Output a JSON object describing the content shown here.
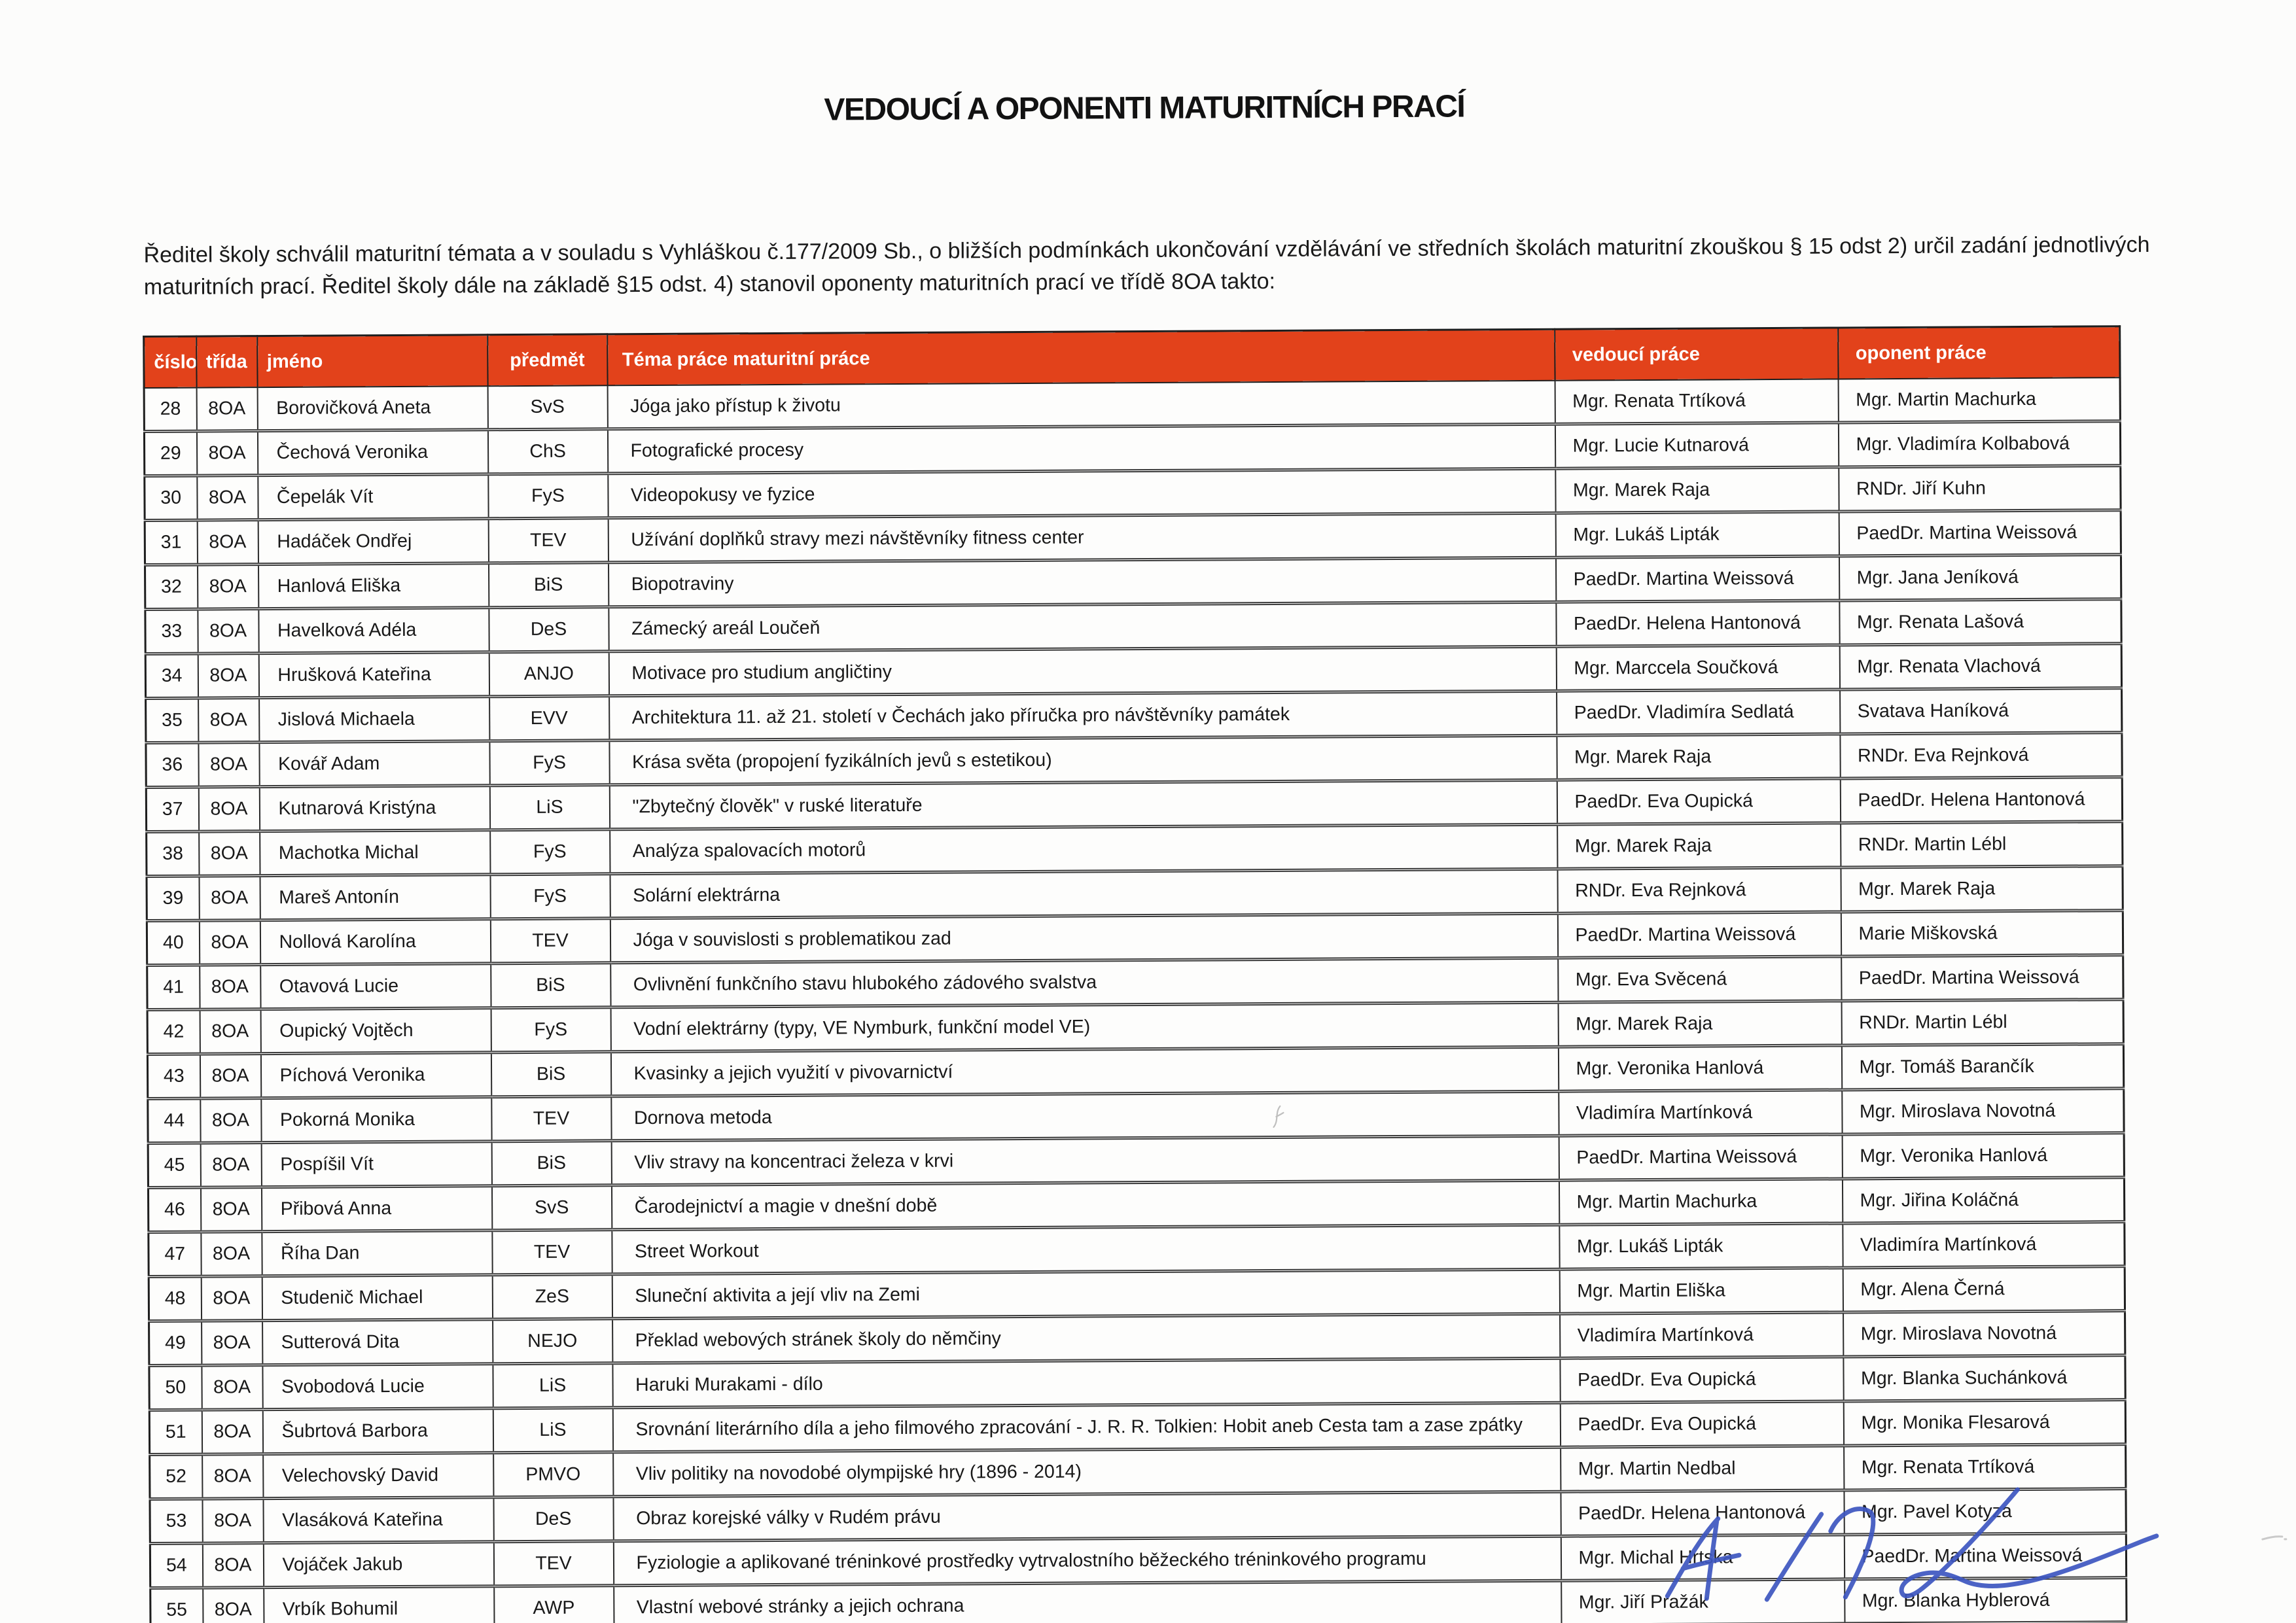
{
  "document": {
    "title": "VEDOUCÍ A OPONENTI MATURITNÍCH PRACÍ",
    "intro": "Ředitel školy schválil maturitní témata a v souladu s Vyhláškou č.177/2009 Sb., o bližších podmínkách ukončování vzdělávání ve středních školách maturitní zkouškou § 15 odst 2) určil zadání jednotlivých maturitních prací. Ředitel školy dále na základě §15 odst. 4) stanovil oponenty maturitních prací ve třídě 8OA takto:"
  },
  "table": {
    "header_bg": "#e2421b",
    "header_text_color": "#ffffff",
    "columns": [
      "číslo",
      "třída",
      "jméno",
      "předmět",
      "Téma práce maturitní práce",
      "vedoucí práce",
      "oponent práce"
    ],
    "column_keys": [
      "cislo",
      "trida",
      "jmeno",
      "predmet",
      "tema",
      "vedouci-prace",
      "oponent-prace"
    ],
    "rows": [
      [
        "28",
        "8OA",
        "Borovičková Aneta",
        "SvS",
        "Jóga jako přístup k životu",
        "Mgr. Renata Trtíková",
        "Mgr. Martin Machurka"
      ],
      [
        "29",
        "8OA",
        "Čechová Veronika",
        "ChS",
        "Fotografické procesy",
        "Mgr. Lucie Kutnarová",
        "Mgr. Vladimíra Kolbabová"
      ],
      [
        "30",
        "8OA",
        "Čepelák Vít",
        "FyS",
        "Videopokusy ve fyzice",
        "Mgr. Marek Raja",
        "RNDr. Jiří Kuhn"
      ],
      [
        "31",
        "8OA",
        "Hadáček Ondřej",
        "TEV",
        "Užívání doplňků stravy mezi návštěvníky fitness center",
        "Mgr. Lukáš Lipták",
        "PaedDr. Martina Weissová"
      ],
      [
        "32",
        "8OA",
        "Hanlová Eliška",
        "BiS",
        "Biopotraviny",
        "PaedDr. Martina Weissová",
        "Mgr. Jana Jeníková"
      ],
      [
        "33",
        "8OA",
        "Havelková Adéla",
        "DeS",
        "Zámecký areál Loučeň",
        "PaedDr. Helena Hantonová",
        "Mgr. Renata Lašová"
      ],
      [
        "34",
        "8OA",
        "Hrušková Kateřina",
        "ANJO",
        "Motivace pro studium angličtiny",
        "Mgr. Marccela Součková",
        "Mgr. Renata Vlachová"
      ],
      [
        "35",
        "8OA",
        "Jislová Michaela",
        "EVV",
        "Architektura 11. až 21. století v Čechách jako příručka pro návštěvníky památek",
        "PaedDr. Vladimíra Sedlatá",
        "Svatava Haníková"
      ],
      [
        "36",
        "8OA",
        "Kovář Adam",
        "FyS",
        "Krása světa (propojení fyzikálních jevů s estetikou)",
        "Mgr. Marek Raja",
        "RNDr. Eva Rejnková"
      ],
      [
        "37",
        "8OA",
        "Kutnarová Kristýna",
        "LiS",
        "\"Zbytečný člověk\" v ruské literatuře",
        "PaedDr. Eva Oupická",
        "PaedDr. Helena Hantonová"
      ],
      [
        "38",
        "8OA",
        "Machotka Michal",
        "FyS",
        "Analýza spalovacích motorů",
        "Mgr. Marek Raja",
        "RNDr. Martin Lébl"
      ],
      [
        "39",
        "8OA",
        "Mareš Antonín",
        "FyS",
        "Solární elektrárna",
        "RNDr. Eva Rejnková",
        "Mgr. Marek Raja"
      ],
      [
        "40",
        "8OA",
        "Nollová Karolína",
        "TEV",
        "Jóga v souvislosti s problematikou zad",
        "PaedDr. Martina Weissová",
        "Marie Miškovská"
      ],
      [
        "41",
        "8OA",
        "Otavová Lucie",
        "BiS",
        "Ovlivnění funkčního stavu hlubokého zádového svalstva",
        "Mgr. Eva Svěcená",
        "PaedDr. Martina Weissová"
      ],
      [
        "42",
        "8OA",
        "Oupický Vojtěch",
        "FyS",
        "Vodní elektrárny (typy, VE Nymburk, funkční model VE)",
        "Mgr. Marek Raja",
        "RNDr. Martin Lébl"
      ],
      [
        "43",
        "8OA",
        "Píchová Veronika",
        "BiS",
        "Kvasinky a jejich využití v pivovarnictví",
        "Mgr. Veronika Hanlová",
        "Mgr. Tomáš Barančík"
      ],
      [
        "44",
        "8OA",
        "Pokorná Monika",
        "TEV",
        "Dornova metoda",
        "Vladimíra Martínková",
        "Mgr. Miroslava Novotná"
      ],
      [
        "45",
        "8OA",
        "Pospíšil Vít",
        "BiS",
        "Vliv stravy na koncentraci železa v krvi",
        "PaedDr. Martina Weissová",
        "Mgr. Veronika Hanlová"
      ],
      [
        "46",
        "8OA",
        "Přibová Anna",
        "SvS",
        "Čarodejnictví a magie v dnešní době",
        "Mgr. Martin Machurka",
        "Mgr. Jiřina Koláčná"
      ],
      [
        "47",
        "8OA",
        "Říha Dan",
        "TEV",
        "Street Workout",
        "Mgr. Lukáš Lipták",
        "Vladimíra Martínková"
      ],
      [
        "48",
        "8OA",
        "Studenič Michael",
        "ZeS",
        "Sluneční aktivita a její vliv na Zemi",
        "Mgr. Martin Eliška",
        "Mgr. Alena Černá"
      ],
      [
        "49",
        "8OA",
        "Sutterová Dita",
        "NEJO",
        "Překlad webových stránek školy do němčiny",
        "Vladimíra Martínková",
        "Mgr. Miroslava Novotná"
      ],
      [
        "50",
        "8OA",
        "Svobodová Lucie",
        "LiS",
        "Haruki Murakami - dílo",
        "PaedDr. Eva Oupická",
        "Mgr. Blanka Suchánková"
      ],
      [
        "51",
        "8OA",
        "Šubrtová Barbora",
        "LiS",
        "Srovnání literárního díla a jeho filmového zpracování - J. R. R. Tolkien: Hobit aneb Cesta tam a zase zpátky",
        "PaedDr. Eva Oupická",
        "Mgr. Monika Flesarová"
      ],
      [
        "52",
        "8OA",
        "Velechovský David",
        "PMVO",
        "Vliv politiky na novodobé olympijské hry (1896 - 2014)",
        "Mgr. Martin Nedbal",
        "Mgr. Renata Trtíková"
      ],
      [
        "53",
        "8OA",
        "Vlasáková Kateřina",
        "DeS",
        "Obraz korejské války v Rudém právu",
        "PaedDr. Helena Hantonová",
        "Mgr. Pavel Kotyza"
      ],
      [
        "54",
        "8OA",
        "Vojáček Jakub",
        "TEV",
        "Fyziologie a aplikované tréninkové prostředky vytrvalostního běžeckého tréninkového programu",
        "Mgr. Michal Hrtska",
        "PaedDr. Martina Weissová"
      ],
      [
        "55",
        "8OA",
        "Vrbík Bohumil",
        "AWP",
        "Vlastní webové stránky a jejich ochrana",
        "Mgr. Jiří Pražák",
        "Mgr. Blanka Hyblerová"
      ]
    ]
  },
  "signature": {
    "ink_color": "#3d56c0"
  }
}
